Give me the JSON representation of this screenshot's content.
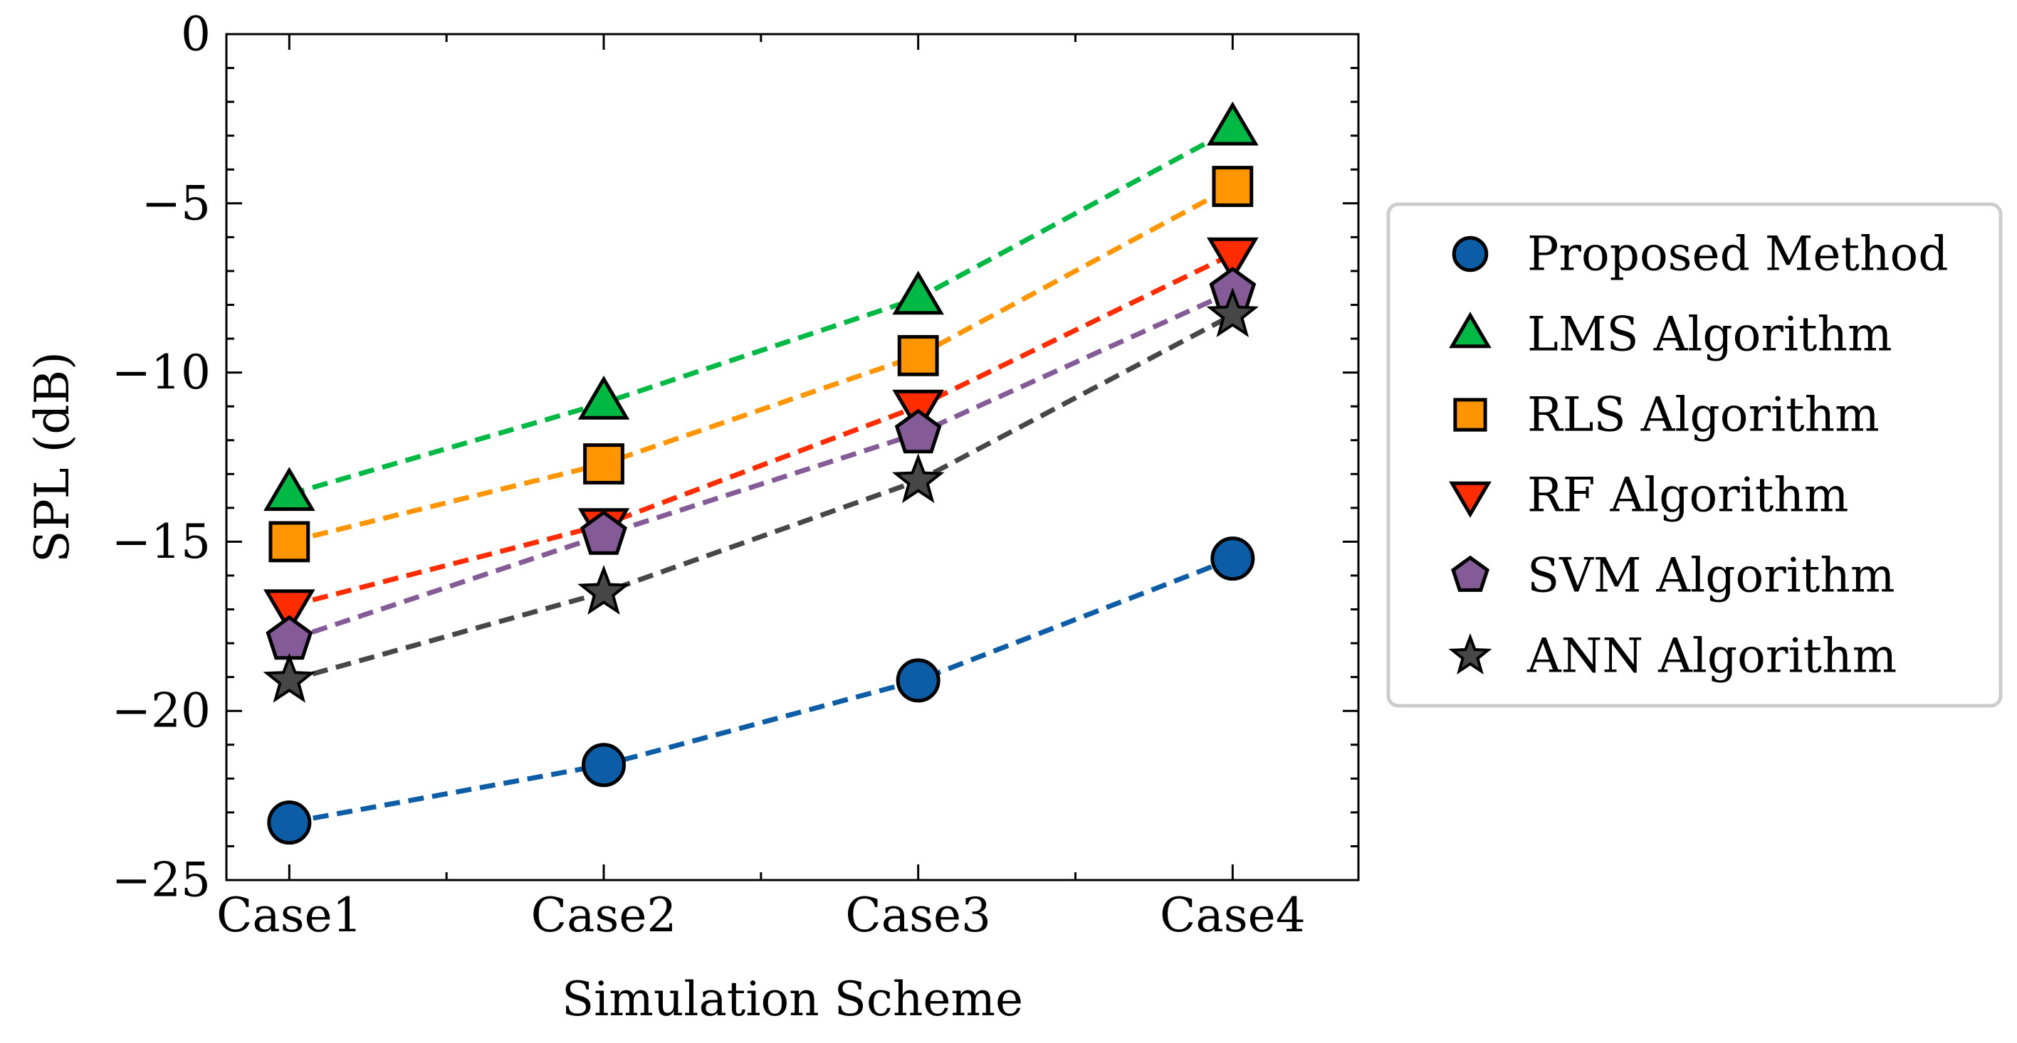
{
  "chart_data": {
    "type": "line",
    "title": "",
    "xlabel": "Simulation Scheme",
    "ylabel": "SPL (dB)",
    "categories": [
      "Case1",
      "Case2",
      "Case3",
      "Case4"
    ],
    "ylim": [
      -25,
      0
    ],
    "yticks": [
      0,
      -5,
      -10,
      -15,
      -20,
      -25
    ],
    "ytick_labels": [
      "0",
      "−5",
      "−10",
      "−15",
      "−20",
      "−25"
    ],
    "grid": false,
    "line_style": "dashed",
    "legend_position": "right-outside",
    "series": [
      {
        "name": "Proposed Method",
        "marker": "circle",
        "color": "#0C5DA5",
        "values": [
          -23.3,
          -21.6,
          -19.1,
          -15.5
        ]
      },
      {
        "name": "LMS Algorithm",
        "marker": "triangle-up",
        "color": "#00B945",
        "values": [
          -13.6,
          -10.9,
          -7.8,
          -2.8
        ]
      },
      {
        "name": "RLS Algorithm",
        "marker": "square",
        "color": "#FF9500",
        "values": [
          -15.0,
          -12.7,
          -9.5,
          -4.5
        ]
      },
      {
        "name": "RF Algorithm",
        "marker": "triangle-down",
        "color": "#FF2C00",
        "values": [
          -16.9,
          -14.5,
          -11.0,
          -6.5
        ]
      },
      {
        "name": "SVM Algorithm",
        "marker": "pentagon",
        "color": "#845B97",
        "values": [
          -17.9,
          -14.8,
          -11.8,
          -7.6
        ]
      },
      {
        "name": "ANN Algorithm",
        "marker": "star",
        "color": "#474747",
        "values": [
          -19.1,
          -16.5,
          -13.2,
          -8.3
        ]
      }
    ]
  }
}
